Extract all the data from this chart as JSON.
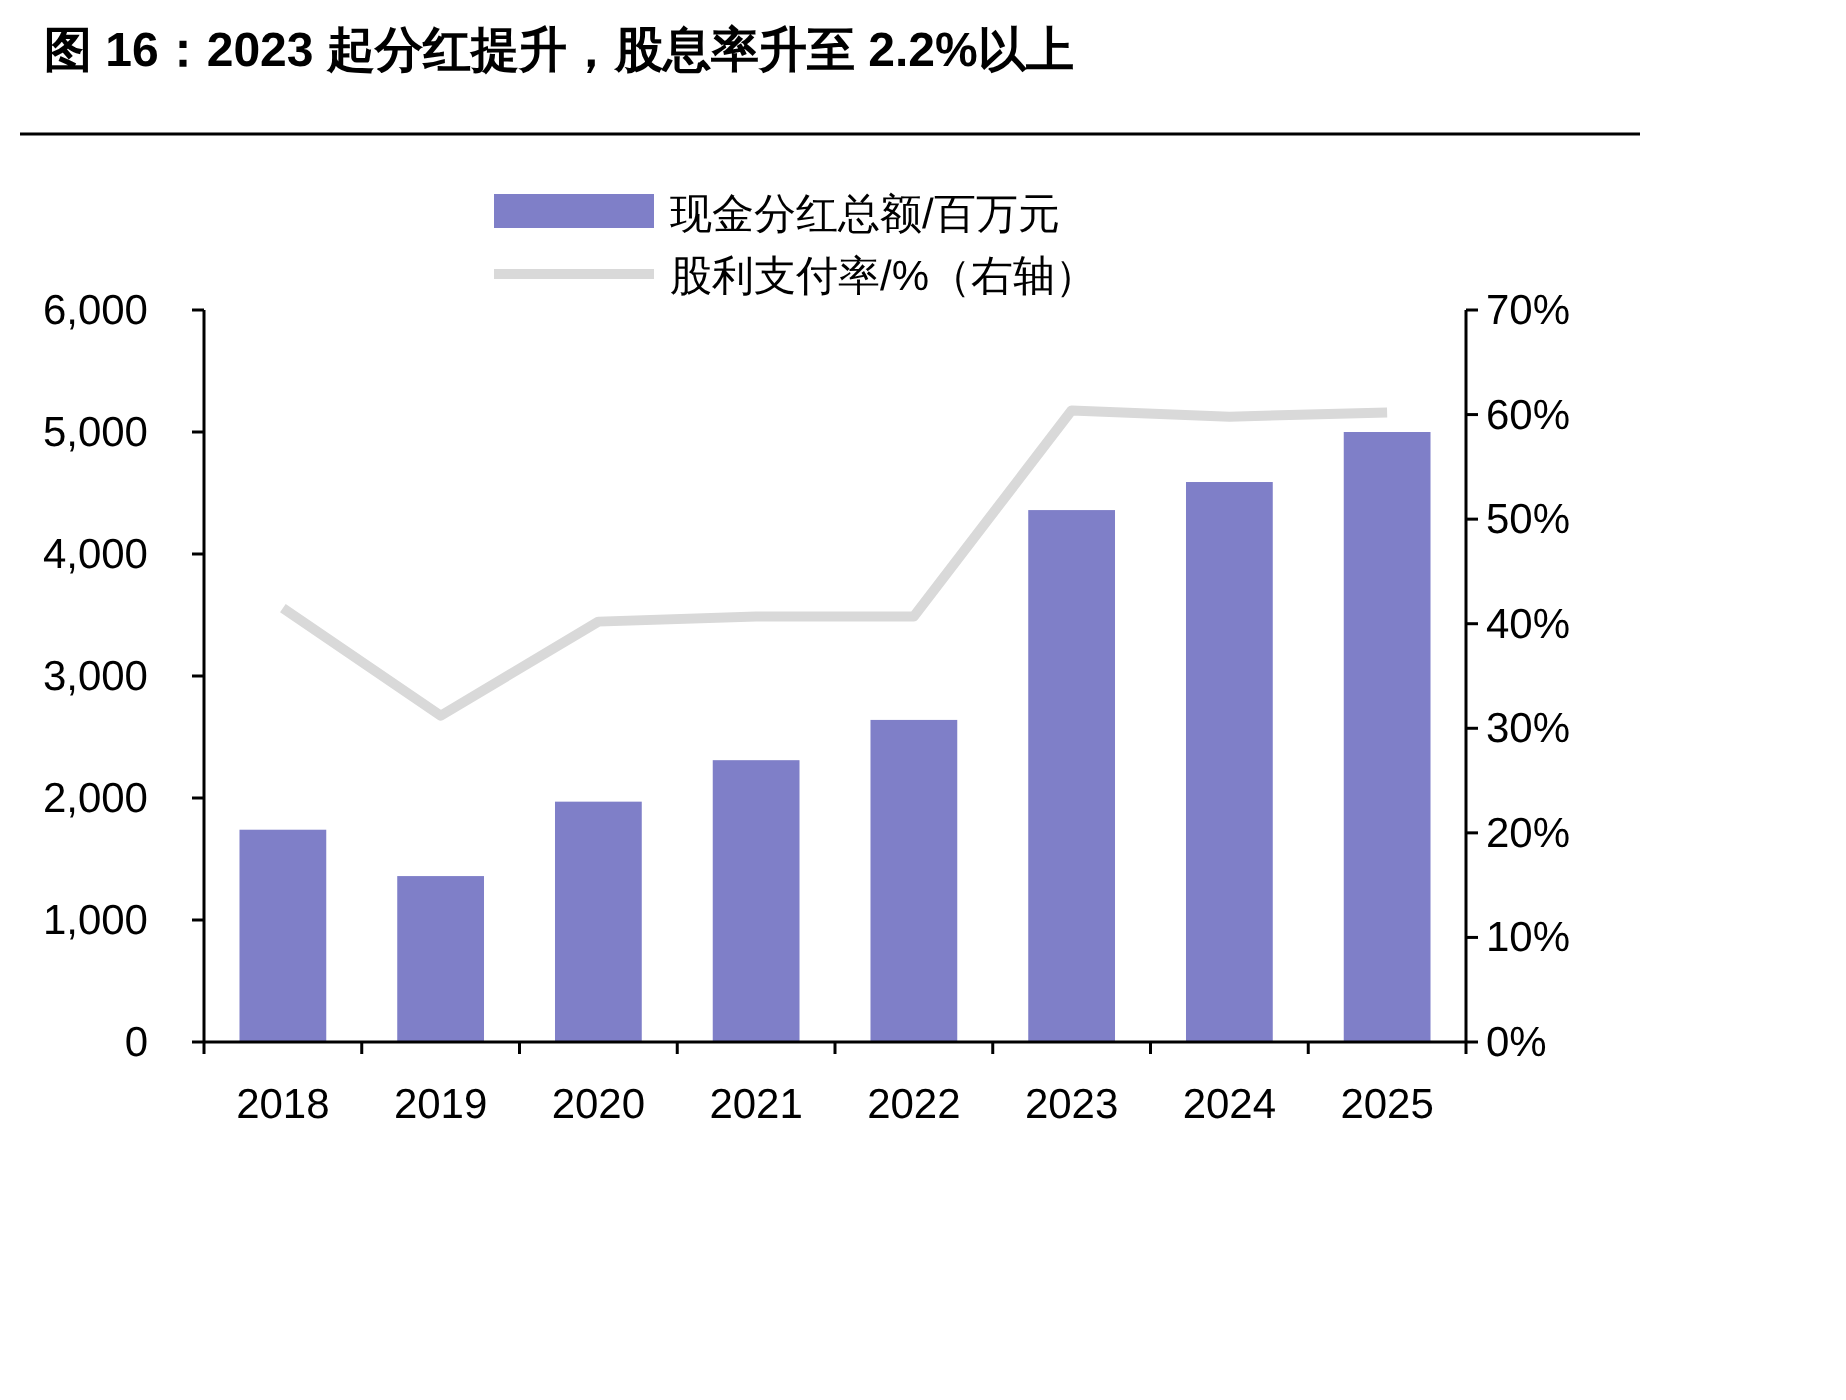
{
  "chart_data": {
    "type": "bar",
    "title": "图 16：2023 起分红提升，股息率升至 2.2%以上",
    "categories": [
      "2018",
      "2019",
      "2020",
      "2021",
      "2022",
      "2023",
      "2024",
      "2025"
    ],
    "series": [
      {
        "name": "现金分红总额/百万元",
        "color": "#7f7fc8",
        "values": [
          1740,
          1360,
          1970,
          2310,
          2640,
          4360,
          4590,
          5000
        ]
      },
      {
        "name": "股利支付率/%（右轴）",
        "type": "line",
        "axis": "y2",
        "color": "#d9d9d9",
        "values": [
          41.5,
          31.2,
          40.2,
          40.7,
          40.7,
          60.4,
          59.8,
          60.2
        ]
      }
    ],
    "ylim": [
      0,
      6000
    ],
    "yticks": [
      0,
      {
        "value": 1000,
        "label": "1,000"
      },
      {
        "value": 2000,
        "label": "2,000"
      },
      {
        "value": 3000,
        "label": "3,000"
      },
      {
        "value": 4000,
        "label": "4,000"
      },
      {
        "value": 5000,
        "label": "5,000"
      },
      {
        "value": 6000,
        "label": "6,000"
      }
    ],
    "y2lim": [
      0,
      70
    ],
    "y2ticks": [
      {
        "value": 0,
        "label": "0%"
      },
      {
        "value": 10,
        "label": "10%"
      },
      {
        "value": 20,
        "label": "20%"
      },
      {
        "value": 30,
        "label": "30%"
      },
      {
        "value": 40,
        "label": "40%"
      },
      {
        "value": 50,
        "label": "50%"
      },
      {
        "value": 60,
        "label": "60%"
      },
      {
        "value": 70,
        "label": "70%"
      }
    ],
    "legend": "top",
    "grid": false,
    "marker": "none",
    "line_style": "solid"
  }
}
